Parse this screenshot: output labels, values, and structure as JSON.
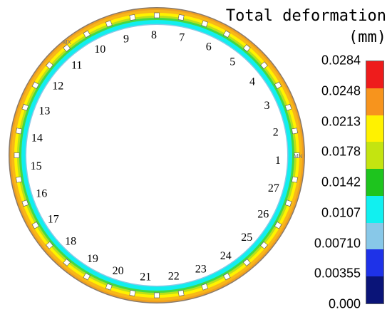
{
  "legend": {
    "title": "Total deformation",
    "unit": "(mm)",
    "labels": [
      "0.0284",
      "0.0248",
      "0.0213",
      "0.0178",
      "0.0142",
      "0.0107",
      "0.00710",
      "0.00355",
      "0.000"
    ],
    "colors": [
      "#ee1c1c",
      "#f7941d",
      "#fff200",
      "#c4e410",
      "#1ec41e",
      "#11f0f0",
      "#88c8e8",
      "#1e32e8",
      "#0a1478"
    ]
  },
  "ring": {
    "point_labels": [
      "1",
      "2",
      "3",
      "4",
      "5",
      "6",
      "7",
      "8",
      "9",
      "10",
      "11",
      "12",
      "13",
      "14",
      "15",
      "16",
      "17",
      "18",
      "19",
      "20",
      "21",
      "22",
      "23",
      "24",
      "25",
      "26",
      "27"
    ],
    "marker_max": "MX",
    "marker_min": "MN"
  }
}
